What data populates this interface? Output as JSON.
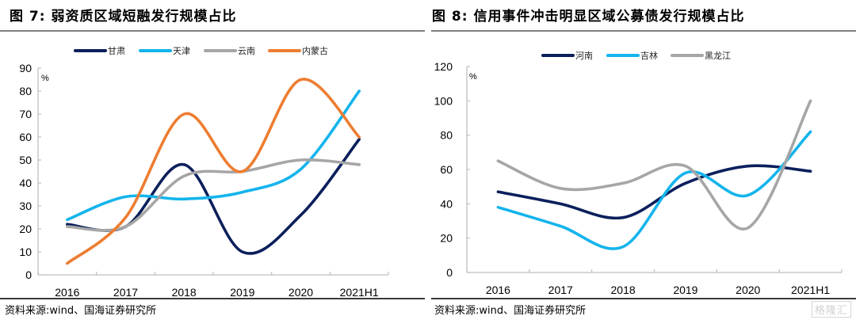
{
  "left": {
    "title": "图 7:  弱资质区域短融发行规模占比",
    "source": "资料来源:wind、国海证券研究所"
  },
  "right": {
    "title": "图 8:  信用事件冲击明显区域公募债发行规模占比",
    "source": "资料来源:wind、国海证券研究所"
  },
  "watermark": "格隆汇",
  "chart_data": [
    {
      "type": "line",
      "title": "弱资质区域短融发行规模占比",
      "xlabel": "",
      "ylabel": "%",
      "categories": [
        "2016",
        "2017",
        "2018",
        "2019",
        "2020",
        "2021H1"
      ],
      "ylim": [
        0,
        90
      ],
      "yticks": [
        0,
        10,
        20,
        30,
        40,
        50,
        60,
        70,
        80,
        90
      ],
      "smooth": true,
      "legend_position": "top-center",
      "grid": false,
      "series": [
        {
          "name": "甘肃",
          "color": "#0b1f5c",
          "values": [
            22,
            21,
            48,
            10,
            26,
            59
          ]
        },
        {
          "name": "天津",
          "color": "#14b4ec",
          "values": [
            24,
            34,
            33,
            36,
            46,
            80
          ]
        },
        {
          "name": "云南",
          "color": "#a6a6a6",
          "values": [
            21,
            21,
            43,
            45,
            50,
            48
          ]
        },
        {
          "name": "内蒙古",
          "color": "#ed7d31",
          "values": [
            5,
            25,
            70,
            45,
            85,
            60
          ]
        }
      ]
    },
    {
      "type": "line",
      "title": "信用事件冲击明显区域公募债发行规模占比",
      "xlabel": "",
      "ylabel": "%",
      "categories": [
        "2016",
        "2017",
        "2018",
        "2019",
        "2020",
        "2021H1"
      ],
      "ylim": [
        0,
        120
      ],
      "yticks": [
        0,
        20,
        40,
        60,
        80,
        100,
        120
      ],
      "smooth": true,
      "legend_position": "top-center",
      "grid": false,
      "series": [
        {
          "name": "河南",
          "color": "#0b1f5c",
          "values": [
            47,
            40,
            32,
            52,
            62,
            59
          ]
        },
        {
          "name": "吉林",
          "color": "#14b4ec",
          "values": [
            38,
            27,
            15,
            58,
            45,
            82
          ]
        },
        {
          "name": "黑龙江",
          "color": "#a6a6a6",
          "values": [
            65,
            49,
            52,
            62,
            26,
            100
          ]
        }
      ]
    }
  ]
}
